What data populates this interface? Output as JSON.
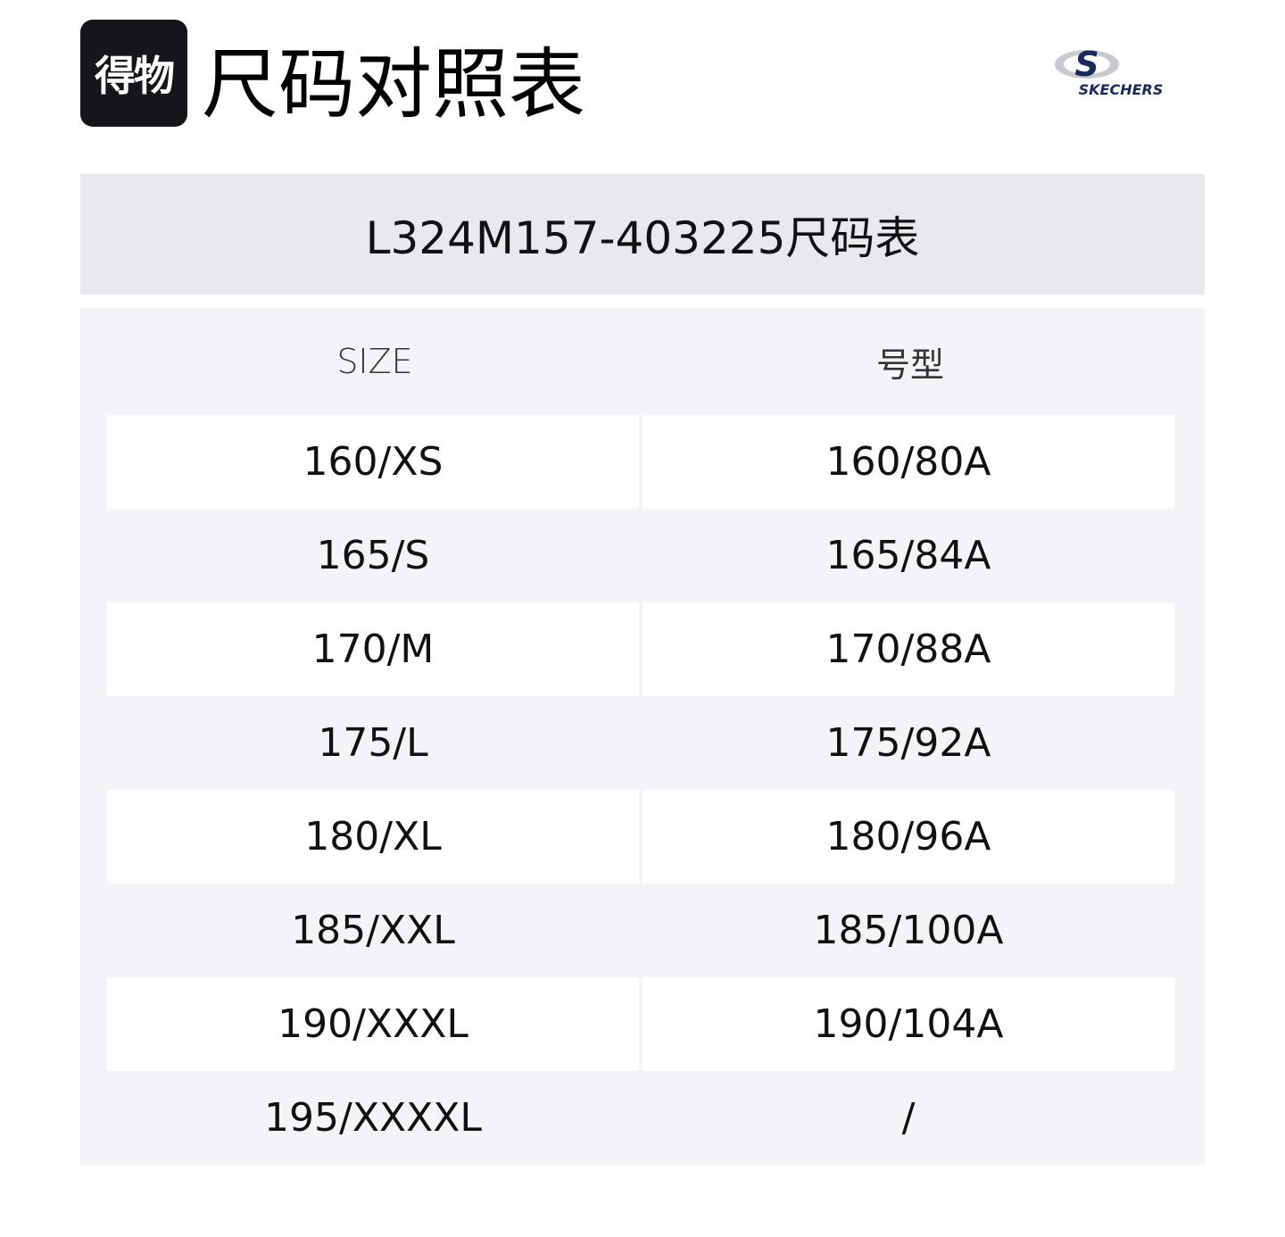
{
  "logo": {
    "text": "得物"
  },
  "title": "尺码对照表",
  "brand": {
    "name": "SKECHERS",
    "color": "#1b2a5c"
  },
  "band_title": "L324M157-403225尺码表",
  "colors": {
    "band": "#e8e8ee",
    "table_bg": "#f4f4f8",
    "stripe": "#ffffff"
  },
  "headers": [
    "SIZE",
    "号型"
  ],
  "rows": [
    [
      "160/XS",
      "160/80A"
    ],
    [
      "165/S",
      "165/84A"
    ],
    [
      "170/M",
      "170/88A"
    ],
    [
      "175/L",
      "175/92A"
    ],
    [
      "180/XL",
      "180/96A"
    ],
    [
      "185/XXL",
      "185/100A"
    ],
    [
      "190/XXXL",
      "190/104A"
    ],
    [
      "195/XXXXL",
      "/"
    ]
  ]
}
